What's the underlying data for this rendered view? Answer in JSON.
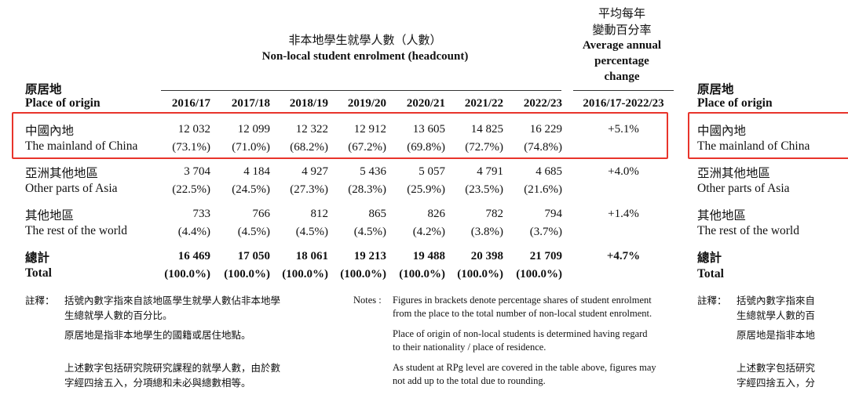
{
  "header": {
    "title_zh": "非本地學生就學人數（人數）",
    "title_en": "Non-local student enrolment (headcount)",
    "avg_zh_1": "平均每年",
    "avg_zh_2": "變動百分率",
    "avg_en_1": "Average annual",
    "avg_en_2": "percentage",
    "avg_en_3": "change",
    "origin_zh": "原居地",
    "origin_en": "Place of origin"
  },
  "years": [
    "2016/17",
    "2017/18",
    "2018/19",
    "2019/20",
    "2020/21",
    "2021/22",
    "2022/23"
  ],
  "avg_period": "2016/17-2022/23",
  "rows": [
    {
      "zh": "中國內地",
      "en": "The mainland of China",
      "values": [
        "12 032",
        "12 099",
        "12 322",
        "12 912",
        "13 605",
        "14 825",
        "16 229"
      ],
      "shares": [
        "(73.1%)",
        "(71.0%)",
        "(68.2%)",
        "(67.2%)",
        "(69.8%)",
        "(72.7%)",
        "(74.8%)"
      ],
      "change": "+5.1%"
    },
    {
      "zh": "亞洲其他地區",
      "en": "Other parts of Asia",
      "values": [
        "3 704",
        "4 184",
        "4 927",
        "5 436",
        "5 057",
        "4 791",
        "4 685"
      ],
      "shares": [
        "(22.5%)",
        "(24.5%)",
        "(27.3%)",
        "(28.3%)",
        "(25.9%)",
        "(23.5%)",
        "(21.6%)"
      ],
      "change": "+4.0%"
    },
    {
      "zh": "其他地區",
      "en": "The rest of the world",
      "values": [
        "733",
        "766",
        "812",
        "865",
        "826",
        "782",
        "794"
      ],
      "shares": [
        "(4.4%)",
        "(4.5%)",
        "(4.5%)",
        "(4.5%)",
        "(4.2%)",
        "(3.8%)",
        "(3.7%)"
      ],
      "change": "+1.4%"
    },
    {
      "zh": "總計",
      "en": "Total",
      "values": [
        "16 469",
        "17 050",
        "18 061",
        "19 213",
        "19 488",
        "20 398",
        "21 709"
      ],
      "shares": [
        "(100.0%)",
        "(100.0%)",
        "(100.0%)",
        "(100.0%)",
        "(100.0%)",
        "(100.0%)",
        "(100.0%)"
      ],
      "change": "+4.7%"
    }
  ],
  "notes": {
    "label_zh": "註釋：",
    "zh_1a": "括號內數字指來自該地區學生就學人數佔非本地學",
    "zh_1b": "生總就學人數的百分比。",
    "zh_2": "原居地是指非本地學生的國籍或居住地點。",
    "zh_3a": "上述數字包括研究院研究課程的就學人數，由於數",
    "zh_3b": "字經四捨五入，分項總和未必與總數相等。",
    "label_en": "Notes :",
    "en_1a": "Figures in brackets denote percentage shares of student enrolment",
    "en_1b": "from the place to the total number of non-local student enrolment.",
    "en_2a": "Place of origin of non-local students is determined having regard",
    "en_2b": "to their nationality / place of residence.",
    "en_3a": "As student at RPg level are covered in the table above, figures may",
    "en_3b": "not add up to the total due to rounding."
  },
  "right_panel": {
    "origin_zh": "原居地",
    "origin_en": "Place of origin",
    "row1_zh": "中國內地",
    "row1_en": "The mainland of China",
    "row2_zh": "亞洲其他地區",
    "row2_en": "Other parts of Asia",
    "row3_zh": "其他地區",
    "row3_en": "The rest of the world",
    "total_zh": "總計",
    "total_en": "Total",
    "note_label": "註釋：",
    "note1a": "括號內數字指來自",
    "note1b": "生總就學人數的百",
    "note2": "原居地是指非本地",
    "note3a": "上述數字包括研究",
    "note3b": "字經四捨五入，分"
  },
  "highlight_color": "#e8342b"
}
